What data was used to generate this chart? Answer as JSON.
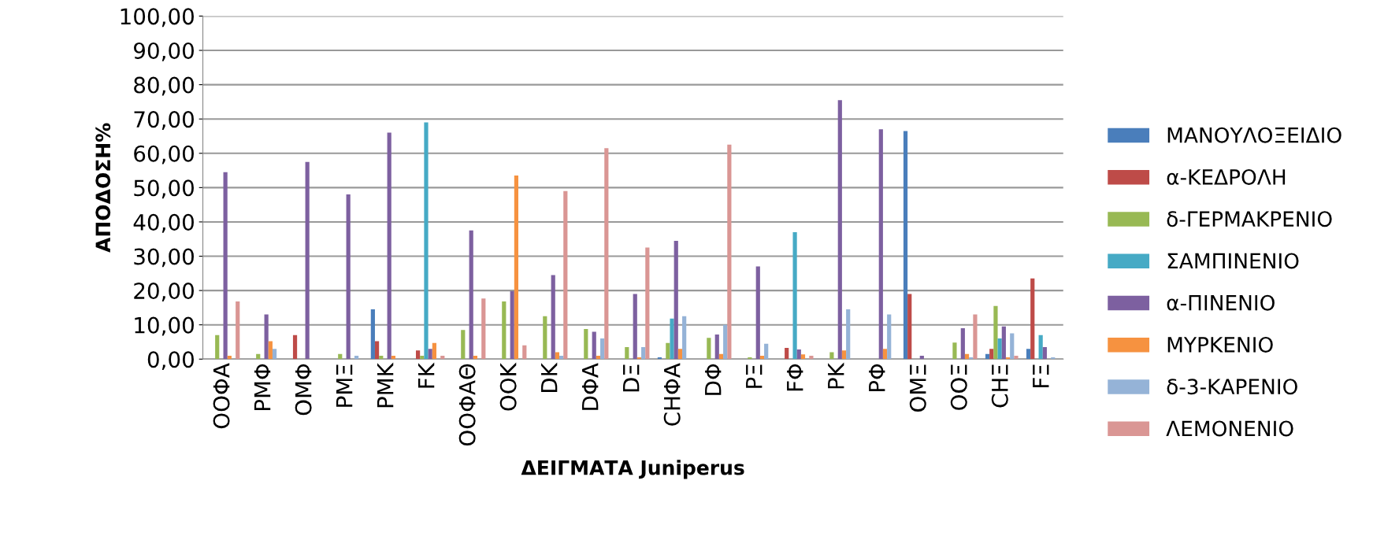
{
  "chart_data": {
    "type": "bar",
    "xlabel": "ΔΕΙΓΜΑΤΑ Juniperus",
    "ylabel": "ΑΠΟΔΟΣΗ%",
    "categories": [
      "ΟΟΦΑ",
      "ΡΜΦ",
      "ΟΜΦ",
      "ΡΜΞ",
      "ΡΜΚ",
      "FK",
      "ΟΟΦΑΘ",
      "ΟΟΚ",
      "DK",
      "DΦΑ",
      "DΞ",
      "CΗΦΑ",
      "DΦ",
      "ΡΞ",
      "FΦ",
      "ΡΚ",
      "ΡΦ",
      "ΟΜΞ",
      "ΟΟΞ",
      "CΗΞ",
      "FΞ"
    ],
    "series": [
      {
        "name": "ΜΑΝΟΥΛΟΞΕΙΔΙΟ",
        "color": "#4a7ebb",
        "values": [
          0,
          0,
          0,
          0,
          14.5,
          0,
          0,
          0,
          0,
          0,
          0,
          0.5,
          0,
          0,
          0,
          0,
          0,
          66.5,
          0,
          1.5,
          3
        ]
      },
      {
        "name": "α-ΚΕΔΡΟΛΗ",
        "color": "#be4b48",
        "values": [
          0,
          0,
          7,
          0,
          5.2,
          2.5,
          0,
          0,
          0,
          0,
          0,
          0,
          0,
          0,
          3.3,
          0,
          0,
          19,
          0,
          3,
          23.5
        ]
      },
      {
        "name": "δ-ΓΕΡΜΑΚΡΕΝΙΟ",
        "color": "#98b954",
        "values": [
          7,
          1.5,
          0,
          1.5,
          1,
          1,
          8.5,
          16.8,
          12.5,
          8.8,
          3.5,
          4.7,
          6.2,
          0.5,
          0,
          2,
          0,
          0,
          4.8,
          15.5,
          0
        ]
      },
      {
        "name": "ΣΑΜΠΙΝΕΝΙΟ",
        "color": "#46aac5",
        "values": [
          0,
          0,
          0,
          0,
          0,
          69,
          0,
          0,
          0,
          0,
          0,
          11.8,
          0,
          0,
          37,
          0,
          0,
          0,
          0,
          6,
          7
        ]
      },
      {
        "name": "α-ΠΙΝΕΝΙΟ",
        "color": "#7d60a0",
        "values": [
          54.5,
          13,
          57.5,
          48,
          66,
          3,
          37.5,
          19.8,
          24.5,
          8,
          19,
          34.5,
          7.2,
          27,
          2.8,
          75.5,
          67,
          1,
          9,
          9.5,
          3.5
        ]
      },
      {
        "name": "ΜΥΡΚΕΝΙΟ",
        "color": "#f69240",
        "values": [
          1,
          5.2,
          0,
          0,
          1,
          4.7,
          1,
          53.5,
          2,
          1,
          0.5,
          3,
          1.5,
          1,
          1.4,
          2.5,
          3,
          0,
          1.5,
          0.5,
          0
        ]
      },
      {
        "name": "δ-3-ΚΑΡΕΝΙΟ",
        "color": "#95b3d7",
        "values": [
          0,
          3,
          0,
          1,
          0,
          0,
          0,
          0,
          1,
          6,
          3.5,
          12.5,
          10,
          4.5,
          0,
          14.5,
          13,
          0,
          0.5,
          7.5,
          0.5
        ]
      },
      {
        "name": "ΛΕΜΟΝΕΝΙΟ",
        "color": "#da9694",
        "values": [
          16.8,
          0,
          0,
          0,
          0,
          1,
          17.7,
          4,
          49,
          61.5,
          32.5,
          0,
          62.5,
          0,
          1,
          0,
          0,
          0,
          13,
          1,
          0
        ]
      }
    ],
    "ylim": [
      0,
      100
    ],
    "yticks": [
      {
        "value": 0,
        "label": "0,00"
      },
      {
        "value": 10,
        "label": "10,00"
      },
      {
        "value": 20,
        "label": "20,00"
      },
      {
        "value": 30,
        "label": "30,00"
      },
      {
        "value": 40,
        "label": "40,00"
      },
      {
        "value": 50,
        "label": "50,00"
      },
      {
        "value": 60,
        "label": "60,00"
      },
      {
        "value": 70,
        "label": "70,00"
      },
      {
        "value": 80,
        "label": "80,00"
      },
      {
        "value": 90,
        "label": "90,00"
      },
      {
        "value": 100,
        "label": "100,00"
      }
    ],
    "grid": "y",
    "legend": "right"
  }
}
